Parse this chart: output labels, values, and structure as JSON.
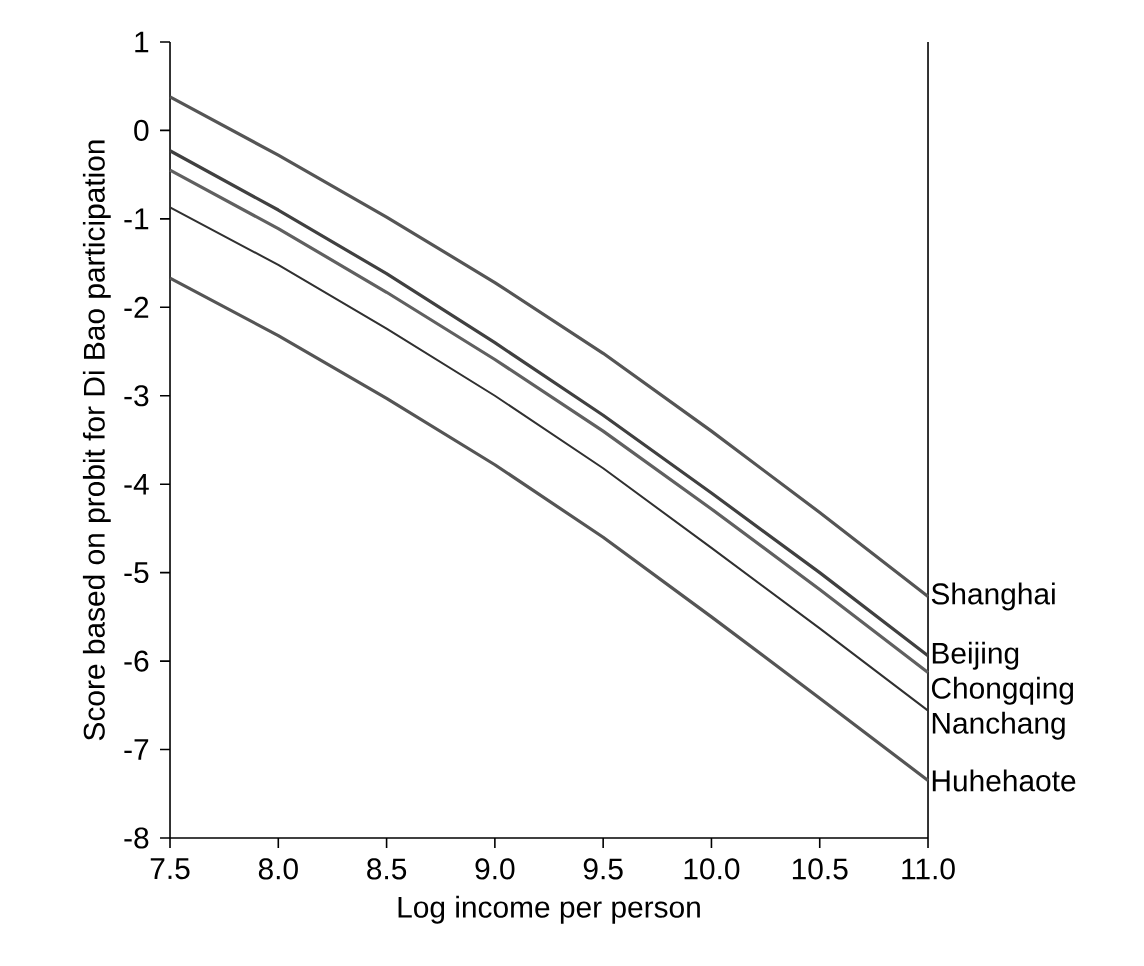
{
  "chart_data": {
    "type": "line",
    "xlabel": "Log income per person",
    "ylabel": "Score based on probit for Di Bao participation",
    "x": [
      7.5,
      8.0,
      8.5,
      9.0,
      9.5,
      10.0,
      10.5,
      11.0
    ],
    "series": [
      {
        "name": "Shanghai",
        "color": "#555555",
        "values": [
          0.38,
          -0.28,
          -0.98,
          -1.72,
          -2.52,
          -3.4,
          -4.32,
          -5.27
        ]
      },
      {
        "name": "Beijing",
        "color": "#404040",
        "values": [
          -0.23,
          -0.9,
          -1.62,
          -2.4,
          -3.22,
          -4.1,
          -5.0,
          -5.94
        ]
      },
      {
        "name": "Chongqing",
        "color": "#606060",
        "values": [
          -0.45,
          -1.11,
          -1.83,
          -2.59,
          -3.4,
          -4.28,
          -5.19,
          -6.13
        ]
      },
      {
        "name": "Nanchang",
        "color": "#303030",
        "values": [
          -0.87,
          -1.52,
          -2.24,
          -3.0,
          -3.82,
          -4.72,
          -5.63,
          -6.56
        ]
      },
      {
        "name": "Huhehaote",
        "color": "#555555",
        "values": [
          -1.67,
          -2.32,
          -3.03,
          -3.78,
          -4.6,
          -5.5,
          -6.42,
          -7.35
        ]
      }
    ],
    "xlim": [
      7.5,
      11.0
    ],
    "ylim": [
      -8,
      1
    ],
    "xticks": [
      7.5,
      {
        "value": 8.0,
        "label": "8.0"
      },
      8.5,
      {
        "value": 9.0,
        "label": "9.0"
      },
      9.5,
      {
        "value": 10.0,
        "label": "10.0"
      },
      10.5,
      {
        "value": 11.0,
        "label": "11.0"
      }
    ],
    "yticks": [
      -8,
      -7,
      -6,
      -5,
      -4,
      -3,
      -2,
      -1,
      0,
      1
    ],
    "grid": false,
    "legend": false,
    "marker": "none",
    "line_style": "solid"
  }
}
